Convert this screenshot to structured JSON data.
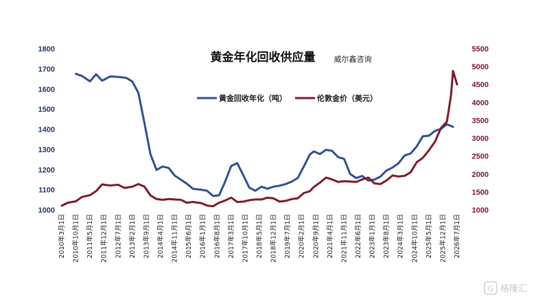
{
  "watermark": "格隆汇",
  "chart_data": {
    "type": "line",
    "title": "黄金年化回收供应量",
    "source_label": "威尔鑫咨询",
    "legend_placement": "top-center",
    "grid": false,
    "y_left": {
      "range": [
        1000,
        1800
      ],
      "ticks": [
        "1000",
        "1100",
        "1200",
        "1300",
        "1400",
        "1500",
        "1600",
        "1700",
        "1800"
      ],
      "color": "#2e4f92"
    },
    "y_right": {
      "range": [
        1000,
        5500
      ],
      "ticks": [
        "1000",
        "1500",
        "2000",
        "2500",
        "3000",
        "3500",
        "4000",
        "4500",
        "5000",
        "5500"
      ],
      "color": "#7d1a2a"
    },
    "x_start": "2010-03",
    "x_end": "2026-07",
    "x_ticks": [
      "2010年3月1日",
      "2010年10月1日",
      "2011年5月1日",
      "2011年12月1日",
      "2012年7月1日",
      "2013年2月1日",
      "2013年9月1日",
      "2014年4月1日",
      "2014年11月1日",
      "2015年6月1日",
      "2016年1月1日",
      "2016年8月1日",
      "2017年3月1日",
      "2017年10月1日",
      "2018年5月1日",
      "2018年12月1日",
      "2019年7月1日",
      "2020年2月1日",
      "2020年9月1日",
      "2021年4月1日",
      "2021年11月1日",
      "2022年6月1日",
      "2023年1月1日",
      "2023年8月1日",
      "2024年3月1日",
      "2024年10月1日",
      "2025年5月1日",
      "2025年12月1日",
      "2026年7月1日"
    ],
    "series": [
      {
        "name": "黄金回收年化（吨）",
        "axis": "left",
        "color": "#2e4f92",
        "points": [
          [
            "2010-10",
            1675
          ],
          [
            "2011-01",
            1665
          ],
          [
            "2011-05",
            1638
          ],
          [
            "2011-08",
            1673
          ],
          [
            "2011-11",
            1641
          ],
          [
            "2012-03",
            1662
          ],
          [
            "2012-07",
            1660
          ],
          [
            "2012-11",
            1655
          ],
          [
            "2013-02",
            1637
          ],
          [
            "2013-05",
            1580
          ],
          [
            "2013-08",
            1430
          ],
          [
            "2013-11",
            1275
          ],
          [
            "2014-02",
            1198
          ],
          [
            "2014-05",
            1215
          ],
          [
            "2014-08",
            1208
          ],
          [
            "2014-11",
            1170
          ],
          [
            "2015-02",
            1150
          ],
          [
            "2015-05",
            1130
          ],
          [
            "2015-08",
            1105
          ],
          [
            "2015-12",
            1100
          ],
          [
            "2016-03",
            1095
          ],
          [
            "2016-06",
            1069
          ],
          [
            "2016-09",
            1072
          ],
          [
            "2016-12",
            1140
          ],
          [
            "2017-03",
            1218
          ],
          [
            "2017-06",
            1232
          ],
          [
            "2017-09",
            1172
          ],
          [
            "2017-12",
            1110
          ],
          [
            "2018-03",
            1095
          ],
          [
            "2018-06",
            1115
          ],
          [
            "2018-09",
            1105
          ],
          [
            "2018-12",
            1115
          ],
          [
            "2019-03",
            1120
          ],
          [
            "2019-06",
            1128
          ],
          [
            "2019-09",
            1140
          ],
          [
            "2019-12",
            1158
          ],
          [
            "2020-03",
            1215
          ],
          [
            "2020-06",
            1275
          ],
          [
            "2020-08",
            1290
          ],
          [
            "2020-11",
            1277
          ],
          [
            "2021-02",
            1298
          ],
          [
            "2021-05",
            1293
          ],
          [
            "2021-08",
            1262
          ],
          [
            "2021-11",
            1253
          ],
          [
            "2022-02",
            1178
          ],
          [
            "2022-05",
            1158
          ],
          [
            "2022-08",
            1168
          ],
          [
            "2022-11",
            1145
          ],
          [
            "2023-02",
            1150
          ],
          [
            "2023-05",
            1165
          ],
          [
            "2023-08",
            1195
          ],
          [
            "2023-11",
            1210
          ],
          [
            "2024-02",
            1232
          ],
          [
            "2024-05",
            1270
          ],
          [
            "2024-08",
            1280
          ],
          [
            "2024-11",
            1315
          ],
          [
            "2025-02",
            1365
          ],
          [
            "2025-05",
            1368
          ],
          [
            "2025-08",
            1392
          ],
          [
            "2025-11",
            1402
          ],
          [
            "2026-02",
            1425
          ],
          [
            "2026-05",
            1412
          ]
        ]
      },
      {
        "name": "伦敦金价（美元）",
        "axis": "right",
        "color": "#7d1a2a",
        "points": [
          [
            "2010-03",
            1115
          ],
          [
            "2010-06",
            1200
          ],
          [
            "2010-10",
            1240
          ],
          [
            "2011-01",
            1360
          ],
          [
            "2011-05",
            1410
          ],
          [
            "2011-08",
            1520
          ],
          [
            "2011-11",
            1710
          ],
          [
            "2012-03",
            1680
          ],
          [
            "2012-07",
            1700
          ],
          [
            "2012-10",
            1610
          ],
          [
            "2013-02",
            1650
          ],
          [
            "2013-05",
            1720
          ],
          [
            "2013-08",
            1650
          ],
          [
            "2013-11",
            1400
          ],
          [
            "2014-02",
            1300
          ],
          [
            "2014-05",
            1280
          ],
          [
            "2014-08",
            1300
          ],
          [
            "2014-11",
            1290
          ],
          [
            "2015-02",
            1280
          ],
          [
            "2015-05",
            1200
          ],
          [
            "2015-08",
            1220
          ],
          [
            "2015-12",
            1190
          ],
          [
            "2016-03",
            1120
          ],
          [
            "2016-06",
            1100
          ],
          [
            "2016-09",
            1200
          ],
          [
            "2016-12",
            1260
          ],
          [
            "2017-03",
            1340
          ],
          [
            "2017-06",
            1220
          ],
          [
            "2017-09",
            1230
          ],
          [
            "2017-12",
            1270
          ],
          [
            "2018-03",
            1290
          ],
          [
            "2018-06",
            1290
          ],
          [
            "2018-09",
            1340
          ],
          [
            "2018-12",
            1320
          ],
          [
            "2019-03",
            1230
          ],
          [
            "2019-06",
            1250
          ],
          [
            "2019-09",
            1300
          ],
          [
            "2019-12",
            1320
          ],
          [
            "2020-03",
            1470
          ],
          [
            "2020-06",
            1520
          ],
          [
            "2020-08",
            1640
          ],
          [
            "2020-11",
            1760
          ],
          [
            "2021-02",
            1900
          ],
          [
            "2021-05",
            1850
          ],
          [
            "2021-08",
            1780
          ],
          [
            "2021-11",
            1800
          ],
          [
            "2022-02",
            1790
          ],
          [
            "2022-05",
            1780
          ],
          [
            "2022-08",
            1850
          ],
          [
            "2022-11",
            1900
          ],
          [
            "2023-02",
            1740
          ],
          [
            "2023-05",
            1720
          ],
          [
            "2023-08",
            1820
          ],
          [
            "2023-11",
            1960
          ],
          [
            "2024-02",
            1930
          ],
          [
            "2024-05",
            1950
          ],
          [
            "2024-08",
            2050
          ],
          [
            "2024-11",
            2330
          ],
          [
            "2025-02",
            2450
          ],
          [
            "2025-05",
            2660
          ],
          [
            "2025-08",
            2900
          ],
          [
            "2025-11",
            3280
          ],
          [
            "2026-02",
            3470
          ],
          [
            "2026-04",
            4200
          ],
          [
            "2026-05",
            4880
          ],
          [
            "2026-07",
            4500
          ]
        ]
      }
    ]
  }
}
